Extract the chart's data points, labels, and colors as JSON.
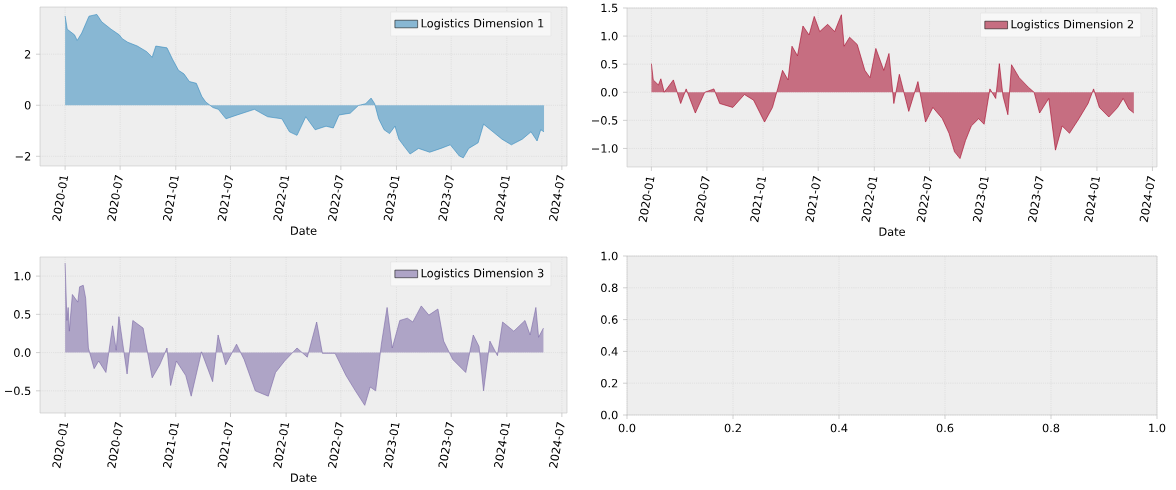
{
  "chart_data": [
    {
      "type": "area",
      "xlabel": "Date",
      "legend": "top right",
      "grid": true,
      "xlim": [
        "2019-10-10",
        "2024-07-18"
      ],
      "ylim": [
        -2.38,
        3.85
      ],
      "xticks": [
        "2020-01",
        "2020-07",
        "2021-01",
        "2021-07",
        "2022-01",
        "2022-07",
        "2023-01",
        "2023-07",
        "2024-01",
        "2024-07"
      ],
      "yticks": [
        {
          "value": -2,
          "label": "−2"
        },
        0,
        2
      ],
      "x": [
        "2020-01-01",
        "2020-01-08",
        "2020-02-01",
        "2020-02-10",
        "2020-02-25",
        "2020-03-20",
        "2020-04-15",
        "2020-05-01",
        "2020-06-01",
        "2020-06-28",
        "2020-07-08",
        "2020-07-26",
        "2020-08-27",
        "2020-09-27",
        "2020-10-15",
        "2020-10-27",
        "2020-12-03",
        "2020-12-21",
        "2021-01-10",
        "2021-01-28",
        "2021-02-15",
        "2021-03-10",
        "2021-03-28",
        "2021-04-10",
        "2021-05-04",
        "2021-05-22",
        "2021-06-16",
        "2021-07-23",
        "2021-09-18",
        "2021-11-01",
        "2021-12-18",
        "2022-01-12",
        "2022-02-06",
        "2022-03-07",
        "2022-04-07",
        "2022-05-13",
        "2022-06-06",
        "2022-06-25",
        "2022-08-01",
        "2022-08-28",
        "2022-09-21",
        "2022-10-09",
        "2022-10-21",
        "2022-11-03",
        "2022-11-21",
        "2022-12-09",
        "2022-12-27",
        "2023-01-09",
        "2023-01-27",
        "2023-02-15",
        "2023-03-15",
        "2023-04-21",
        "2023-05-28",
        "2023-06-28",
        "2023-07-28",
        "2023-08-10",
        "2023-08-28",
        "2023-09-28",
        "2023-10-16",
        "2023-11-16",
        "2023-12-16",
        "2024-01-16",
        "2024-02-21",
        "2024-03-21",
        "2024-04-10",
        "2024-04-22",
        "2024-05-03"
      ],
      "series": [
        {
          "name": "Logistics Dimension 1",
          "color": "#348abd",
          "values": [
            3.5,
            2.98,
            2.76,
            2.54,
            2.83,
            3.49,
            3.56,
            3.27,
            2.98,
            2.76,
            2.61,
            2.47,
            2.32,
            2.1,
            1.88,
            2.32,
            2.25,
            1.81,
            1.37,
            1.23,
            0.93,
            0.86,
            0.35,
            0.13,
            -0.09,
            -0.16,
            -0.53,
            -0.38,
            -0.16,
            -0.45,
            -0.53,
            -1.04,
            -1.18,
            -0.45,
            -0.96,
            -0.82,
            -0.89,
            -0.38,
            -0.31,
            -0.01,
            0.06,
            0.28,
            0.06,
            -0.53,
            -0.96,
            -1.11,
            -0.82,
            -1.33,
            -1.62,
            -1.91,
            -1.69,
            -1.84,
            -1.69,
            -1.55,
            -1.99,
            -2.06,
            -1.69,
            -1.47,
            -0.74,
            -1.04,
            -1.33,
            -1.55,
            -1.33,
            -1.04,
            -1.4,
            -0.96,
            -1.04
          ]
        }
      ]
    },
    {
      "type": "area",
      "xlabel": "Date",
      "legend": "top right",
      "grid": true,
      "xlim": [
        "2019-10-13",
        "2024-07-16"
      ],
      "ylim": [
        -1.33,
        1.5
      ],
      "xticks": [
        "2020-01",
        "2020-07",
        "2021-01",
        "2021-07",
        "2022-01",
        "2022-07",
        "2023-01",
        "2023-07",
        "2024-01",
        "2024-07"
      ],
      "yticks": [
        {
          "value": -1,
          "label": "−1.0"
        },
        {
          "value": -0.5,
          "label": "−0.5"
        },
        {
          "value": 0,
          "label": "0.0"
        },
        0.5,
        {
          "value": 1,
          "label": "1.0"
        },
        1.5
      ],
      "x": [
        "2020-01-01",
        "2020-01-07",
        "2020-01-24",
        "2020-02-01",
        "2020-02-12",
        "2020-03-13",
        "2020-04-06",
        "2020-04-24",
        "2020-05-24",
        "2020-06-24",
        "2020-07-24",
        "2020-08-12",
        "2020-09-24",
        "2020-11-01",
        "2020-12-01",
        "2021-01-06",
        "2021-02-01",
        "2021-02-18",
        "2021-03-06",
        "2021-03-24",
        "2021-04-06",
        "2021-04-24",
        "2021-05-12",
        "2021-06-01",
        "2021-06-18",
        "2021-07-06",
        "2021-08-01",
        "2021-08-24",
        "2021-09-15",
        "2021-09-24",
        "2021-10-12",
        "2021-11-06",
        "2021-12-01",
        "2021-12-18",
        "2022-01-06",
        "2022-02-01",
        "2022-02-18",
        "2022-03-06",
        "2022-03-24",
        "2022-04-24",
        "2022-05-24",
        "2022-06-18",
        "2022-07-12",
        "2022-08-12",
        "2022-09-03",
        "2022-09-21",
        "2022-10-09",
        "2022-10-27",
        "2022-11-15",
        "2022-12-09",
        "2022-12-27",
        "2023-01-15",
        "2023-02-03",
        "2023-02-15",
        "2023-02-27",
        "2023-03-15",
        "2023-03-27",
        "2023-04-21",
        "2023-05-21",
        "2023-06-09",
        "2023-06-27",
        "2023-07-27",
        "2023-08-18",
        "2023-09-09",
        "2023-10-03",
        "2023-11-03",
        "2023-12-03",
        "2023-12-21",
        "2024-01-09",
        "2024-02-09",
        "2024-03-09",
        "2024-03-27",
        "2024-04-15",
        "2024-05-01"
      ],
      "series": [
        {
          "name": "Logistics Dimension 2",
          "color": "#a60628",
          "values": [
            0.51,
            0.22,
            0.13,
            0.24,
            0.0,
            0.22,
            -0.2,
            0.06,
            -0.37,
            0.0,
            0.06,
            -0.2,
            -0.27,
            -0.04,
            -0.14,
            -0.53,
            -0.27,
            0.06,
            0.39,
            0.22,
            0.82,
            0.65,
            1.18,
            1.02,
            1.35,
            1.08,
            1.21,
            1.08,
            1.38,
            0.82,
            0.98,
            0.85,
            0.39,
            0.26,
            0.78,
            0.39,
            0.69,
            -0.2,
            0.32,
            -0.34,
            0.19,
            -0.53,
            -0.27,
            -0.47,
            -0.73,
            -1.06,
            -1.18,
            -0.86,
            -0.6,
            -0.47,
            -0.57,
            0.06,
            -0.11,
            0.51,
            -0.07,
            -0.4,
            0.49,
            0.26,
            0.09,
            0.0,
            -0.37,
            -0.11,
            -1.03,
            -0.6,
            -0.73,
            -0.47,
            -0.2,
            0.06,
            -0.27,
            -0.44,
            -0.27,
            -0.11,
            -0.3,
            -0.37
          ]
        }
      ]
    },
    {
      "type": "area",
      "xlabel": "Date",
      "legend": "top right",
      "grid": true,
      "xlim": [
        "2019-10-10",
        "2024-07-18"
      ],
      "ylim": [
        -0.79,
        1.25
      ],
      "xticks": [
        "2020-01",
        "2020-07",
        "2021-01",
        "2021-07",
        "2022-01",
        "2022-07",
        "2023-01",
        "2023-07",
        "2024-01",
        "2024-07"
      ],
      "yticks": [
        {
          "value": -0.5,
          "label": "−0.5"
        },
        {
          "value": 0,
          "label": "0.0"
        },
        0.5,
        {
          "value": 1,
          "label": "1.0"
        }
      ],
      "x": [
        "2020-01-01",
        "2020-01-07",
        "2020-01-11",
        "2020-01-15",
        "2020-01-25",
        "2020-02-12",
        "2020-02-18",
        "2020-03-01",
        "2020-03-09",
        "2020-03-18",
        "2020-04-06",
        "2020-04-21",
        "2020-05-15",
        "2020-06-06",
        "2020-06-18",
        "2020-06-27",
        "2020-07-24",
        "2020-08-12",
        "2020-09-15",
        "2020-10-15",
        "2020-11-09",
        "2020-12-03",
        "2020-12-15",
        "2021-01-03",
        "2021-02-03",
        "2021-02-21",
        "2021-03-27",
        "2021-05-03",
        "2021-05-21",
        "2021-06-15",
        "2021-07-21",
        "2021-08-15",
        "2021-09-21",
        "2021-11-03",
        "2021-11-27",
        "2021-12-27",
        "2022-02-06",
        "2022-03-12",
        "2022-04-12",
        "2022-05-01",
        "2022-06-12",
        "2022-07-18",
        "2022-08-18",
        "2022-09-18",
        "2022-10-06",
        "2022-10-24",
        "2022-11-12",
        "2022-12-01",
        "2022-12-18",
        "2023-01-12",
        "2023-02-06",
        "2023-02-24",
        "2023-03-24",
        "2023-04-18",
        "2023-05-18",
        "2023-06-06",
        "2023-07-06",
        "2023-08-18",
        "2023-09-12",
        "2023-10-01",
        "2023-10-16",
        "2023-11-06",
        "2023-12-01",
        "2023-12-18",
        "2024-01-24",
        "2024-03-01",
        "2024-03-18",
        "2024-04-06",
        "2024-04-15",
        "2024-05-01"
      ],
      "series": [
        {
          "name": "Logistics Dimension 3",
          "color": "#7a68a6",
          "values": [
            1.17,
            0.42,
            0.59,
            0.28,
            0.76,
            0.66,
            0.86,
            0.88,
            0.71,
            0.06,
            -0.21,
            -0.11,
            -0.26,
            0.35,
            0.03,
            0.47,
            -0.28,
            0.42,
            0.32,
            -0.33,
            -0.16,
            0.06,
            -0.43,
            -0.11,
            -0.3,
            -0.57,
            0.01,
            -0.38,
            0.23,
            -0.16,
            0.11,
            -0.09,
            -0.5,
            -0.57,
            -0.26,
            -0.11,
            0.06,
            -0.06,
            0.4,
            -0.01,
            -0.01,
            -0.3,
            -0.5,
            -0.69,
            -0.45,
            -0.5,
            0.11,
            0.59,
            0.06,
            0.42,
            0.45,
            0.4,
            0.61,
            0.49,
            0.57,
            0.15,
            -0.09,
            -0.26,
            0.23,
            0.08,
            -0.5,
            0.15,
            -0.04,
            0.4,
            0.28,
            0.42,
            0.23,
            0.59,
            0.2,
            0.32
          ]
        }
      ]
    },
    {
      "type": "line",
      "grid": true,
      "xlim": [
        0,
        1
      ],
      "ylim": [
        0,
        1
      ],
      "xticks": [
        {
          "value": 0,
          "label": "0.0"
        },
        0.2,
        0.4,
        0.6,
        0.8,
        {
          "value": 1,
          "label": "1.0"
        }
      ],
      "yticks": [
        {
          "value": 0,
          "label": "0.0"
        },
        0.2,
        0.4,
        0.6,
        0.8,
        {
          "value": 1,
          "label": "1.0"
        }
      ]
    }
  ]
}
